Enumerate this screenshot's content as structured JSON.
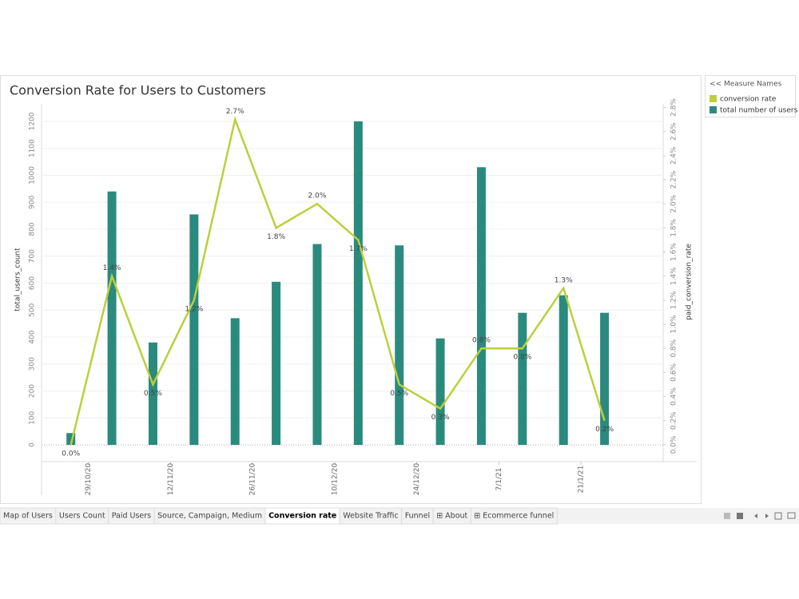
{
  "chart_data": {
    "type": "bar-line",
    "title": "Conversion Rate for Users to Customers",
    "legend_title": "<< Measure Names",
    "y_label": "total_users_count",
    "y2_label": "paid_conversion_rate",
    "x": [
      "2020-10-26",
      "2020-11-02",
      "2020-11-09",
      "2020-11-16",
      "2020-11-23",
      "2020-11-30",
      "2020-12-07",
      "2020-12-14",
      "2020-12-21",
      "2020-12-28",
      "2021-01-04",
      "2021-01-11",
      "2021-01-18",
      "2021-01-25"
    ],
    "xlim": [
      "2020-10-21",
      "2021-02-04"
    ],
    "xticks": [
      {
        "value": "2020-10-29",
        "label": "29/10/20"
      },
      {
        "value": "2020-11-12",
        "label": "12/11/20"
      },
      {
        "value": "2020-11-26",
        "label": "26/11/20"
      },
      {
        "value": "2020-12-10",
        "label": "10/12/20"
      },
      {
        "value": "2020-12-24",
        "label": "24/12/20"
      },
      {
        "value": "2021-01-07",
        "label": "7/1/21"
      },
      {
        "value": "2021-01-21",
        "label": "21/1/21"
      }
    ],
    "ylim": [
      -62,
      1265
    ],
    "yticks": [
      0,
      100,
      200,
      300,
      400,
      500,
      600,
      700,
      800,
      900,
      1000,
      1100,
      1200
    ],
    "y2lim": [
      -0.14,
      2.83
    ],
    "y2ticks": [
      {
        "value": 0,
        "label": "0.0%"
      },
      {
        "value": 0.2,
        "label": "0.2%"
      },
      {
        "value": 0.4,
        "label": "0.4%"
      },
      {
        "value": 0.6,
        "label": "0.6%"
      },
      {
        "value": 0.8,
        "label": "0.8%"
      },
      {
        "value": 1,
        "label": "1.0%"
      },
      {
        "value": 1.2,
        "label": "1.2%"
      },
      {
        "value": 1.4,
        "label": "1.4%"
      },
      {
        "value": 1.6,
        "label": "1.6%"
      },
      {
        "value": 1.8,
        "label": "1.8%"
      },
      {
        "value": 2,
        "label": "2.0%"
      },
      {
        "value": 2.2,
        "label": "2.2%"
      },
      {
        "value": 2.4,
        "label": "2.4%"
      },
      {
        "value": 2.6,
        "label": "2.6%"
      },
      {
        "value": 2.8,
        "label": "2.8%"
      }
    ],
    "grid": true,
    "legend_position": "right",
    "series": [
      {
        "name": "conversion rate",
        "type": "line",
        "axis": "y2",
        "color": "#bccf3c",
        "values": [
          0.0,
          1.4,
          0.5,
          1.2,
          2.7,
          1.8,
          2.0,
          1.7,
          0.5,
          0.3,
          0.8,
          0.8,
          1.3,
          0.2
        ],
        "value_labels": [
          "0.0%",
          "1.4%",
          "0.5%",
          "1.2%",
          "2.7%",
          "1.8%",
          "2.0%",
          "1.7%",
          "0.5%",
          "0.3%",
          "0.8%",
          "0.8%",
          "1.3%",
          "0.2%"
        ]
      },
      {
        "name": "total number of users",
        "type": "bar",
        "color": "#2b8a7e",
        "values": [
          44,
          940,
          380,
          855,
          470,
          605,
          745,
          1200,
          740,
          395,
          1030,
          490,
          555,
          490
        ]
      }
    ]
  },
  "tabs": [
    "Map of Users",
    "Users Count",
    "Paid Users",
    "Source, Campaign, Medium",
    "Conversion rate",
    "Website Traffic",
    "Funnel",
    "⊞ About",
    "⊞ Ecommerce funnel"
  ],
  "active_tab": 4
}
